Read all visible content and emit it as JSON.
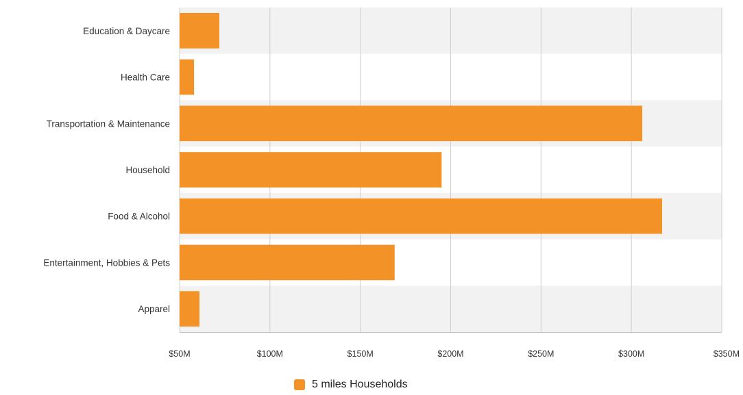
{
  "chart_data": {
    "type": "bar",
    "orientation": "horizontal",
    "categories": [
      "Education & Daycare",
      "Health Care",
      "Transportation & Maintenance",
      "Household",
      "Food & Alcohol",
      "Entertainment, Hobbies & Pets",
      "Apparel"
    ],
    "series": [
      {
        "name": "5 miles Households",
        "color": "#f39226",
        "values": [
          72,
          58,
          306,
          195,
          317,
          169,
          61
        ]
      }
    ],
    "xlim": [
      50,
      350
    ],
    "xticks": [
      50,
      100,
      150,
      200,
      250,
      300,
      350
    ],
    "xtick_labels": [
      "$50M",
      "$100M",
      "$150M",
      "$200M",
      "$250M",
      "$300M",
      "$350M"
    ],
    "grid": "vertical",
    "band_colors": [
      "#f2f2f2",
      "#ffffff"
    ],
    "legend_position": "bottom-center"
  }
}
